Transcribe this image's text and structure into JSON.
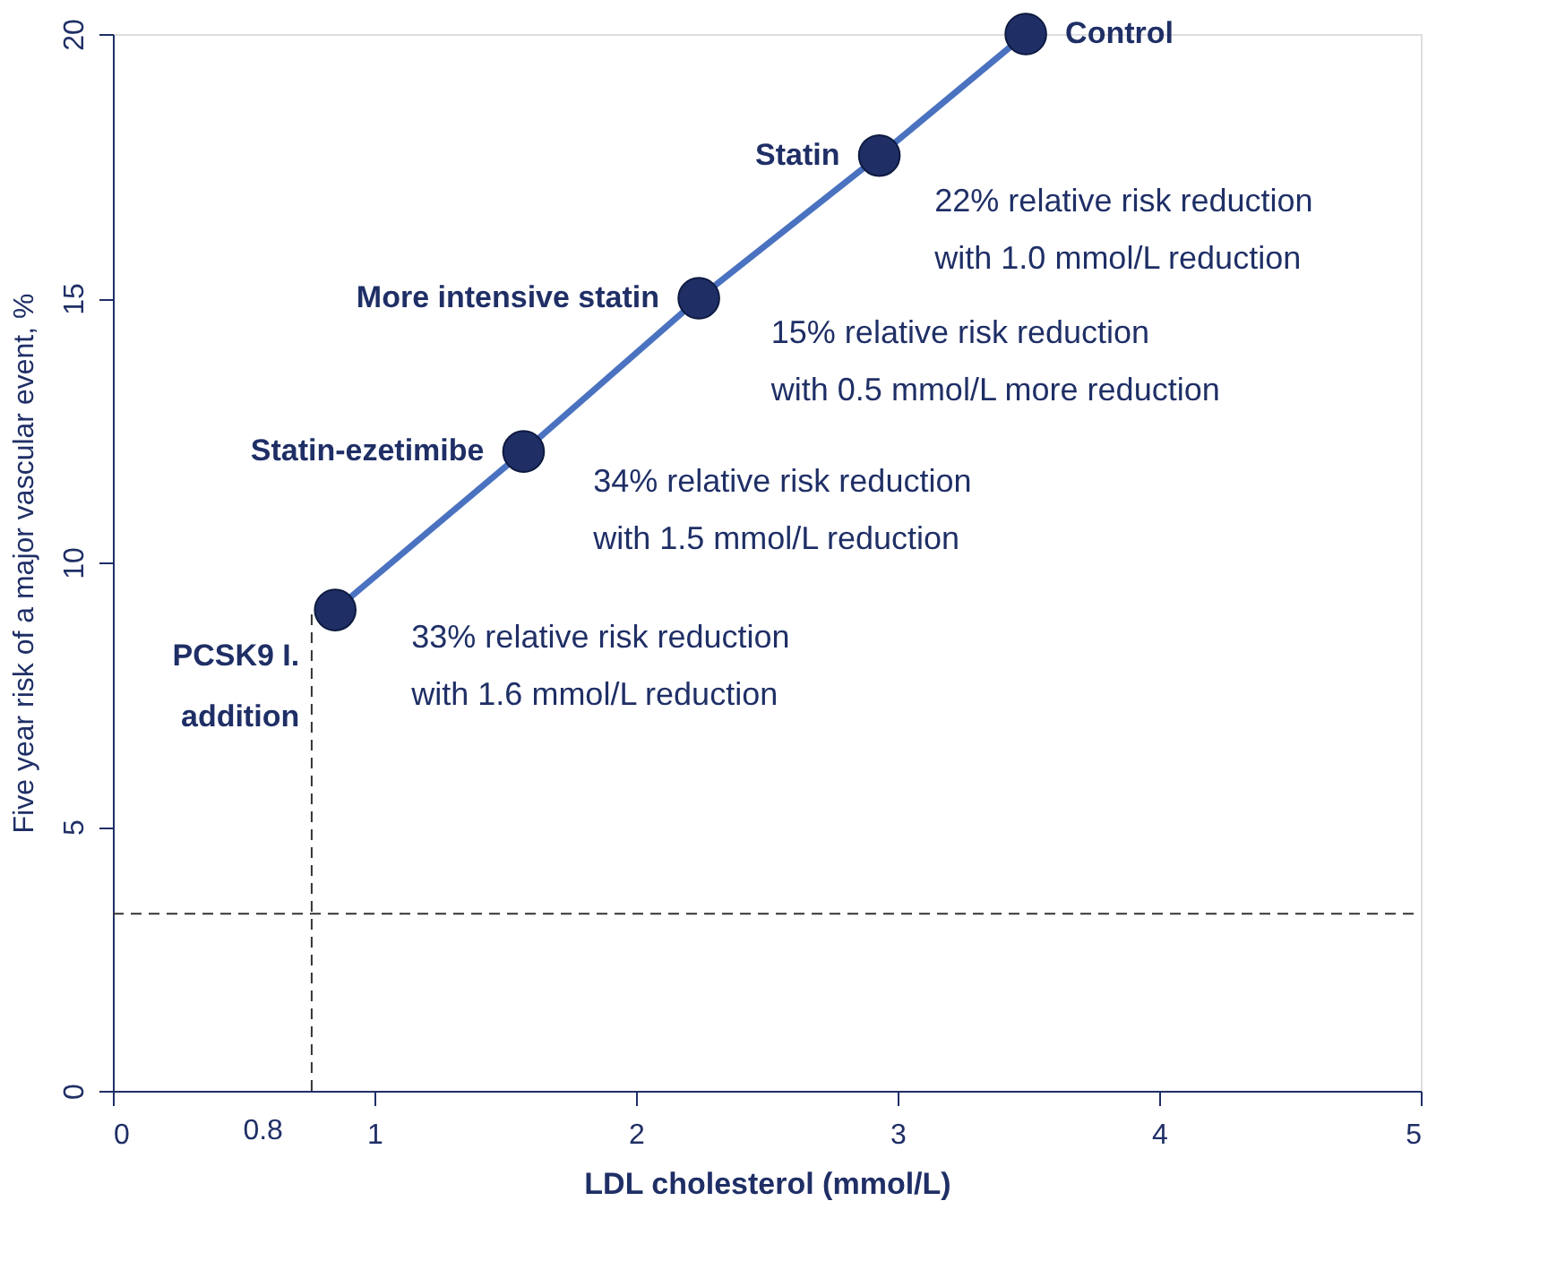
{
  "chart_data": {
    "type": "line",
    "xlabel": "LDL cholesterol (mmol/L)",
    "ylabel": "Five year risk of a major vascular event, %",
    "x": [
      0.85,
      1.57,
      2.24,
      2.93,
      3.49
    ],
    "series": [
      {
        "color": "#4a72c0",
        "values": [
          9.1,
          12.1,
          15.0,
          17.7,
          20.0
        ]
      }
    ],
    "marker": "circle",
    "line_style": "solid",
    "grid": false,
    "xlim": [
      0,
      5
    ],
    "xticks": [
      0,
      1,
      2,
      3,
      4,
      5
    ],
    "ylim": [
      0,
      20
    ],
    "yticks": [
      0,
      5,
      10,
      15,
      20
    ],
    "ref_lines": [
      {
        "axis": "x",
        "value": 0.76,
        "label": "0.8",
        "line_style": "dashed",
        "color": "#333333"
      },
      {
        "axis": "y",
        "value": 3.35,
        "line_style": "dashed",
        "color": "#333333"
      }
    ],
    "annotations": [
      {
        "text": "PCSK9 I.\naddition",
        "x": 0.85,
        "y": 9.1
      },
      {
        "text": "Statin-ezetimibe",
        "x": 1.57,
        "y": 12.1
      },
      {
        "text": "More intensive statin",
        "x": 2.24,
        "y": 15.0
      },
      {
        "text": "Statin",
        "x": 2.93,
        "y": 17.7
      },
      {
        "text": "Control",
        "x": 3.49,
        "y": 20.0
      },
      "22% relative risk reduction\nwith 1.0 mmol/L reduction",
      "15% relative risk reduction\nwith 0.5 mmol/L more reduction",
      "34% relative risk reduction\nwith 1.5 mmol/L reduction",
      "33% relative risk reduction\nwith 1.6 mmol/L reduction"
    ]
  }
}
